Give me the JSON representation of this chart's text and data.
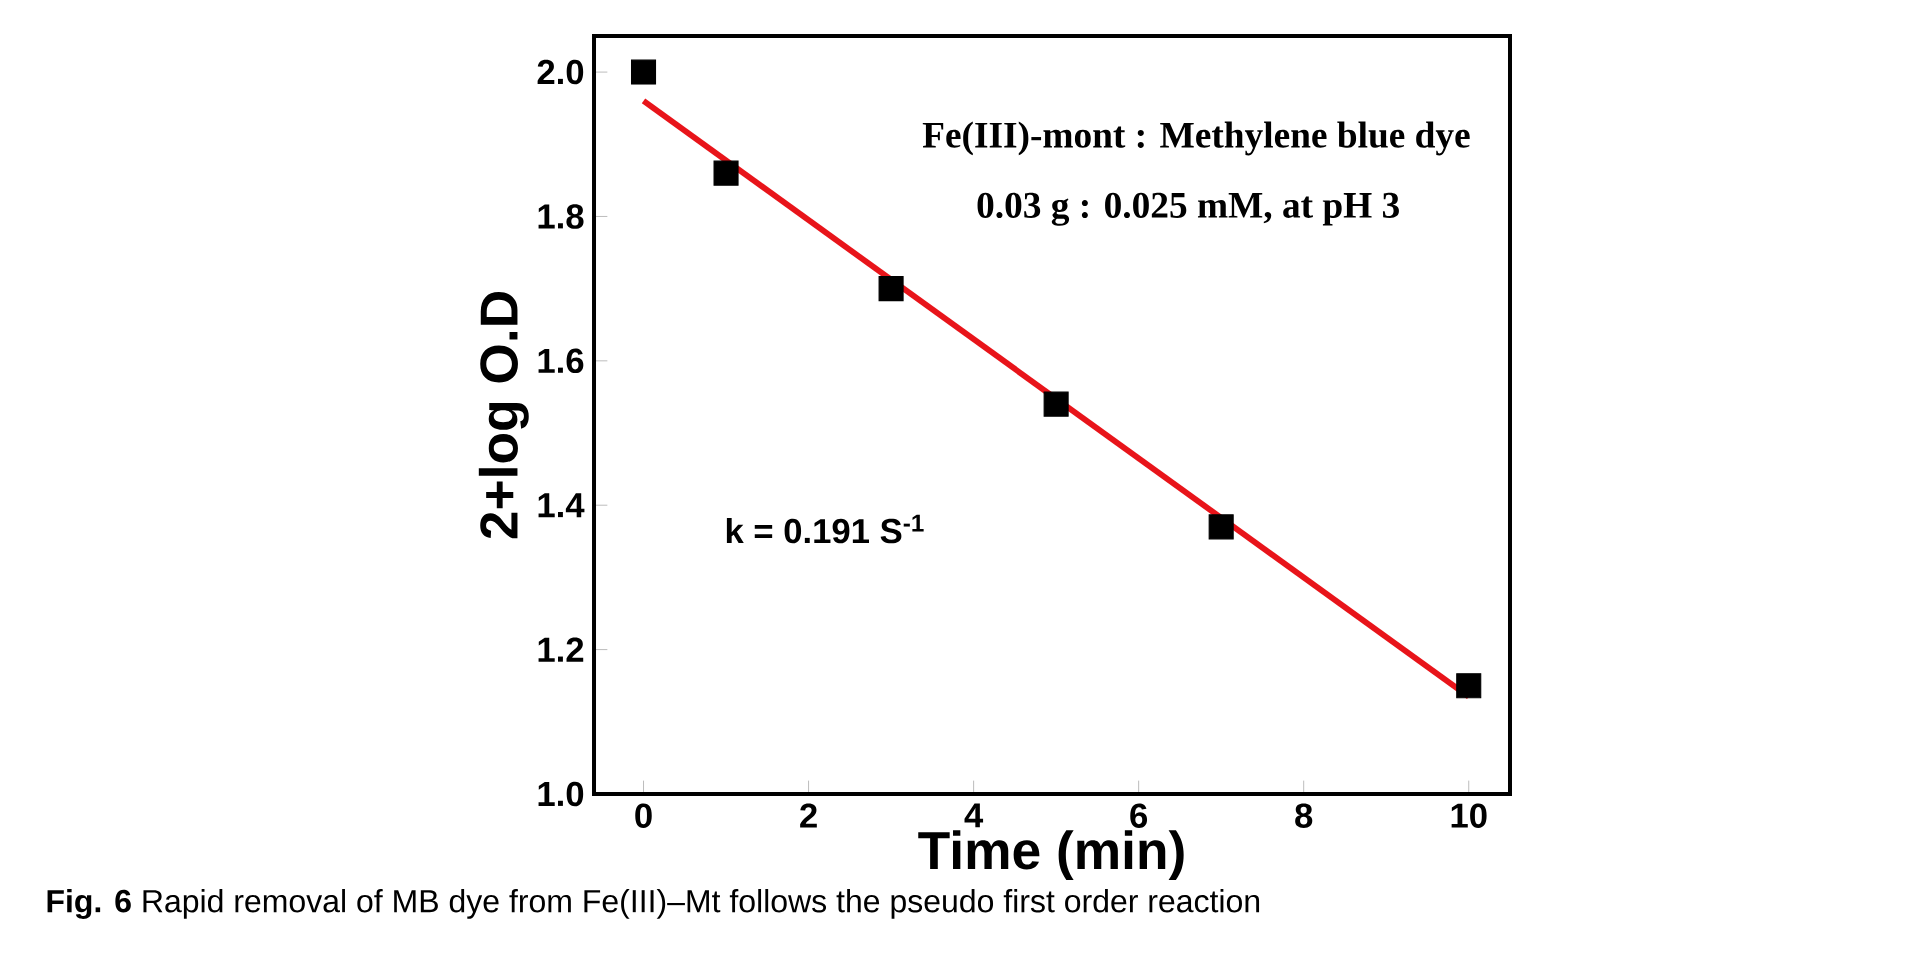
{
  "chart_data": {
    "type": "scatter",
    "xlabel": "Time (min)",
    "ylabel": "2+log O.D",
    "xlim": [
      -0.6,
      10.5
    ],
    "ylim": [
      1.0,
      2.05
    ],
    "xticks": [
      0,
      2,
      4,
      6,
      8,
      10
    ],
    "yticks": [
      {
        "value": 1.0,
        "label": "1.0"
      },
      {
        "value": 1.2,
        "label": "1.2"
      },
      {
        "value": 1.4,
        "label": "1.4"
      },
      {
        "value": 1.6,
        "label": "1.6"
      },
      {
        "value": 1.8,
        "label": "1.8"
      },
      {
        "value": 2.0,
        "label": "2.0"
      }
    ],
    "series": [
      {
        "color": "#000000",
        "marker": "square",
        "x": [
          0,
          1,
          3,
          5,
          7,
          10
        ],
        "values": [
          2.0,
          1.86,
          1.7,
          1.54,
          1.37,
          1.15
        ]
      },
      {
        "type": "line",
        "color": "#e8141a",
        "marker": "none",
        "line_style": "solid",
        "x": [
          0,
          10
        ],
        "values": [
          1.96,
          1.135
        ]
      }
    ],
    "annotations": [
      "Fe(III)-mont : Methylene blue dye",
      "0.03 g      : 0.025 mM, at pH 3",
      "k = 0.191 S$^{-1}$",
      "**Fig. 6** Rapid removal of MB dye from Fe(III)–Mt follows the pseudo first order reaction"
    ],
    "grid": false
  }
}
